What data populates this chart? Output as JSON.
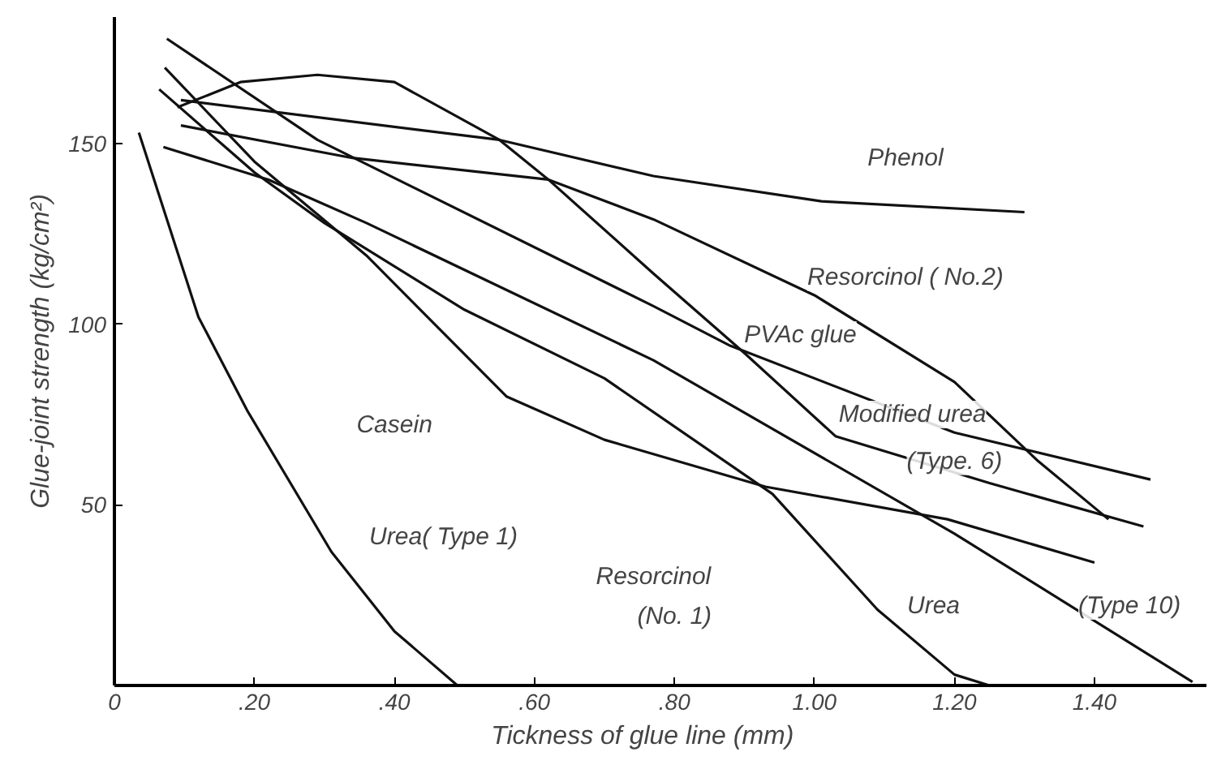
{
  "chart_data": {
    "type": "line",
    "xlabel": "Tickness of glue line      (mm)",
    "ylabel": "Glue-joint strength (kg/cm²)",
    "xlim": [
      0,
      1.56
    ],
    "ylim": [
      0,
      185
    ],
    "xticks": [
      0,
      {
        "value": 0.2,
        "label": ".20"
      },
      {
        "value": 0.4,
        "label": ".40"
      },
      {
        "value": 0.6,
        "label": ".60"
      },
      {
        "value": 0.8,
        "label": ".80"
      },
      {
        "value": 1.0,
        "label": "1.00"
      },
      {
        "value": 1.2,
        "label": "1.20"
      },
      {
        "value": 1.4,
        "label": "1.40"
      }
    ],
    "yticks": [
      50,
      100,
      150
    ],
    "grid": false,
    "marker": "none",
    "line_style": "solid",
    "series": [
      {
        "color": "#111111",
        "x": [
          0.035,
          0.12,
          0.19,
          0.31,
          0.4,
          0.49
        ],
        "values": [
          153,
          102,
          76,
          37,
          15,
          0
        ]
      },
      {
        "color": "#111111",
        "x": [
          0.072,
          0.2,
          0.36,
          0.56,
          0.7,
          0.93,
          1.19,
          1.4
        ],
        "values": [
          171,
          145,
          119,
          80,
          68,
          55,
          46,
          34
        ]
      },
      {
        "color": "#111111",
        "x": [
          0.064,
          0.2,
          0.3,
          0.5,
          0.7,
          0.94,
          1.09,
          1.2,
          1.25
        ],
        "values": [
          165,
          142,
          128,
          104,
          85,
          53,
          21,
          3,
          0
        ]
      },
      {
        "color": "#111111",
        "x": [
          0.07,
          0.22,
          0.36,
          0.77,
          1.2,
          1.54
        ],
        "values": [
          149,
          140,
          128,
          90,
          42,
          1
        ]
      },
      {
        "color": "#111111",
        "x": [
          0.075,
          0.29,
          0.77,
          0.88,
          1.2,
          1.48
        ],
        "values": [
          179,
          151,
          105,
          94,
          70,
          57
        ]
      },
      {
        "color": "#111111",
        "x": [
          0.09,
          0.18,
          0.29,
          0.4,
          0.55,
          0.62,
          0.77,
          0.9,
          1.03,
          1.25,
          1.47
        ],
        "values": [
          160,
          167,
          169,
          167,
          151,
          140,
          114,
          92,
          69,
          56,
          44
        ]
      },
      {
        "color": "#111111",
        "x": [
          0.095,
          0.34,
          0.62,
          0.77,
          1.0,
          1.2,
          1.32,
          1.42
        ],
        "values": [
          155,
          146,
          140,
          129,
          108,
          84,
          62,
          46
        ]
      },
      {
        "color": "#111111",
        "x": [
          0.095,
          0.55,
          0.77,
          1.01,
          1.3
        ],
        "values": [
          162,
          151,
          141,
          134,
          131
        ]
      }
    ],
    "annotations": [
      "Phenol",
      "Resorcinol ( No.2)",
      "PVAc glue",
      "Modified urea",
      "(Type. 6)",
      "Casein",
      "Urea( Type 1)",
      "Resorcinol",
      "(No. 1)",
      "Urea",
      "(Type 10)"
    ]
  }
}
